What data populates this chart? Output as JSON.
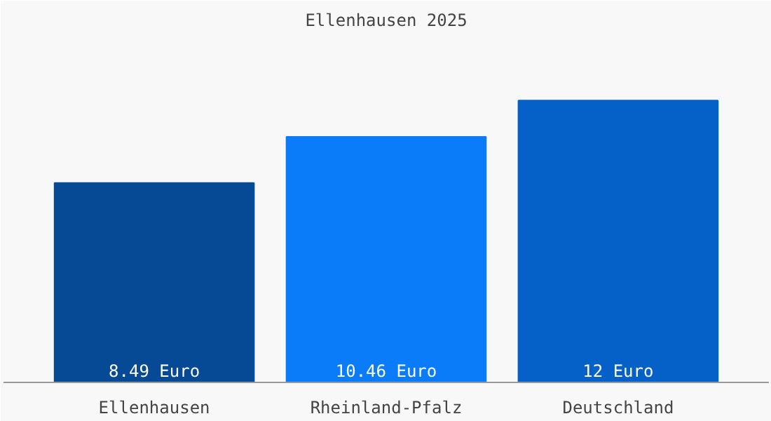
{
  "chart_data": {
    "type": "bar",
    "title": "Ellenhausen 2025",
    "categories": [
      "Ellenhausen",
      "Rheinland-Pfalz",
      "Deutschland"
    ],
    "values": [
      8.49,
      10.46,
      12
    ],
    "colors": [
      "#064a96",
      "#0a7cfa",
      "#0560c8"
    ],
    "value_labels": [
      "8.49 Euro",
      "10.46 Euro",
      "12 Euro"
    ],
    "grid": false
  }
}
